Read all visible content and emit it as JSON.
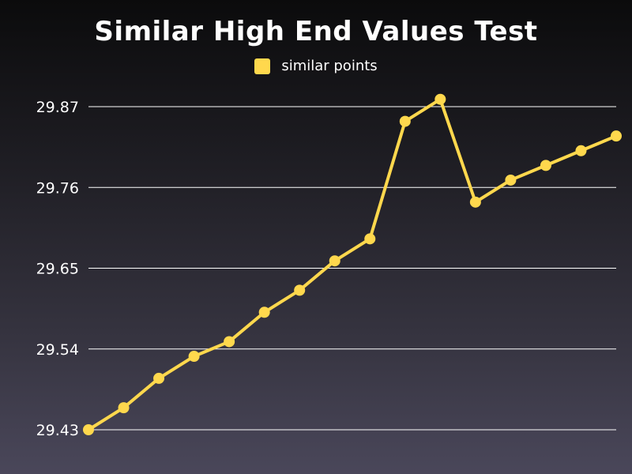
{
  "chart_data": {
    "type": "line",
    "title": "Similar High End Values Test",
    "xlabel": "",
    "ylabel": "",
    "ylim": [
      29.43,
      29.87
    ],
    "yticks": [
      "29.43",
      "29.54",
      "29.65",
      "29.76",
      "29.87"
    ],
    "grid": true,
    "legend_position": "top-center",
    "series": [
      {
        "name": "similar points",
        "color": "#ffd84d",
        "values": [
          29.43,
          29.46,
          29.5,
          29.53,
          29.55,
          29.59,
          29.62,
          29.66,
          29.69,
          29.85,
          29.88,
          29.74,
          29.77,
          29.79,
          29.81,
          29.83
        ]
      }
    ]
  }
}
